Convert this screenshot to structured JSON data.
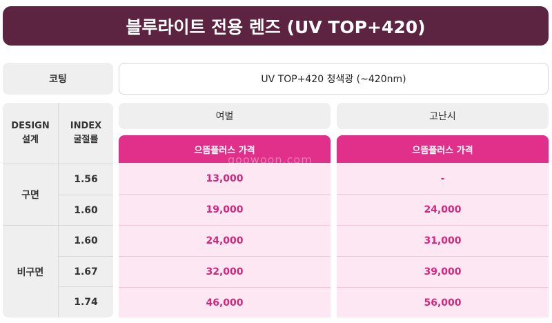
{
  "title": "블루라이트 전용 렌즈 (UV TOP+420)",
  "coating": {
    "label": "코팅",
    "value": "UV TOP+420 청색광 (~420nm)"
  },
  "headers": {
    "design": "DESIGN",
    "design_ko": "설계",
    "index": "INDEX",
    "index_ko": "굴절률"
  },
  "groups": [
    {
      "label": "여벌",
      "sub": "으뜸플러스 가격"
    },
    {
      "label": "고난시",
      "sub": "으뜸플러스 가격"
    }
  ],
  "designs": [
    {
      "label": "구면"
    },
    {
      "label": "비구면"
    }
  ],
  "rows": [
    {
      "index": "1.56",
      "yeobeol": "13,000",
      "gonansi": "-"
    },
    {
      "index": "1.60",
      "yeobeol": "19,000",
      "gonansi": "24,000"
    },
    {
      "index": "1.60",
      "yeobeol": "24,000",
      "gonansi": "31,000"
    },
    {
      "index": "1.67",
      "yeobeol": "32,000",
      "gonansi": "39,000"
    },
    {
      "index": "1.74",
      "yeobeol": "46,000",
      "gonansi": "56,000"
    }
  ],
  "watermark": "goowoon.com",
  "colors": {
    "banner": "#5c2440",
    "accent_pink": "#e0308a",
    "pink_bg": "#fde7f2",
    "price_text": "#d4277c"
  }
}
